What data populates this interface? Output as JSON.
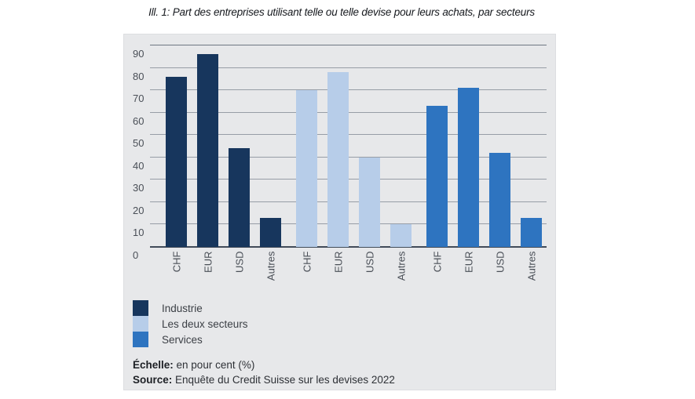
{
  "title": "Ill. 1: Part des entreprises utilisant telle ou telle devise pour leurs achats, par secteurs",
  "chart_data": {
    "type": "bar",
    "categories": [
      "CHF",
      "EUR",
      "USD",
      "Autres"
    ],
    "series": [
      {
        "name": "Industrie",
        "color": "#17365d",
        "values": [
          76,
          86,
          44,
          13
        ]
      },
      {
        "name": "Les deux secteurs",
        "color": "#b7cde9",
        "values": [
          70,
          78,
          40,
          10
        ]
      },
      {
        "name": "Services",
        "color": "#2e74c0",
        "values": [
          63,
          71,
          42,
          13
        ]
      }
    ],
    "title": "Ill. 1: Part des entreprises utilisant telle ou telle devise pour leurs achats, par secteurs",
    "xlabel": "",
    "ylabel": "en pour cent (%)",
    "ylim": [
      0,
      90
    ],
    "yticks": [
      0,
      10,
      20,
      30,
      40,
      50,
      60,
      70,
      80,
      90
    ],
    "grid": true,
    "legend_position": "bottom-left"
  },
  "footer": {
    "scale_label": "Échelle:",
    "scale_value": " en pour cent (%)",
    "source_label": "Source:",
    "source_value": " Enquête du Credit Suisse sur les devises 2022"
  },
  "colors": {
    "panel_background": "#e7e8ea",
    "gridline": "#979da6",
    "axis_line": "#414b59",
    "industrie": "#17365d",
    "deux_secteurs": "#b7cde9",
    "services": "#2e74c0"
  }
}
